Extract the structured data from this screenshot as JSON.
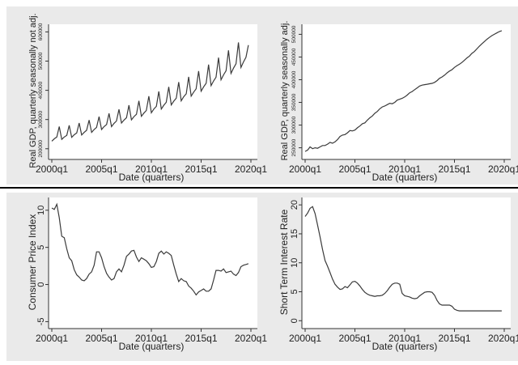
{
  "chart_data": [
    {
      "type": "line",
      "xlabel": "Date (quarters)",
      "ylabel": "Real GDP, quarterly seasonally not adj.",
      "x_ticks": [
        "2000q1",
        "2005q1",
        "2010q1",
        "2015q1",
        "2020q1"
      ],
      "y_ticks": [
        "200000",
        "300000",
        "400000",
        "500000",
        "600000"
      ],
      "xlim": [
        2000.0,
        2020.0
      ],
      "ylim": [
        180000,
        615000
      ],
      "grid": false,
      "series": [
        {
          "x": [
            2000.0,
            2000.25,
            2000.5,
            2000.75,
            2001.0,
            2001.25,
            2001.5,
            2001.75,
            2002.0,
            2002.25,
            2002.5,
            2002.75,
            2003.0,
            2003.25,
            2003.5,
            2003.75,
            2004.0,
            2004.25,
            2004.5,
            2004.75,
            2005.0,
            2005.25,
            2005.5,
            2005.75,
            2006.0,
            2006.25,
            2006.5,
            2006.75,
            2007.0,
            2007.25,
            2007.5,
            2007.75,
            2008.0,
            2008.25,
            2008.5,
            2008.75,
            2009.0,
            2009.25,
            2009.5,
            2009.75,
            2010.0,
            2010.25,
            2010.5,
            2010.75,
            2011.0,
            2011.25,
            2011.5,
            2011.75,
            2012.0,
            2012.25,
            2012.5,
            2012.75,
            2013.0,
            2013.25,
            2013.5,
            2013.75,
            2014.0,
            2014.25,
            2014.5,
            2014.75,
            2015.0,
            2015.25,
            2015.5,
            2015.75,
            2016.0,
            2016.25,
            2016.5,
            2016.75,
            2017.0,
            2017.25,
            2017.5,
            2017.75,
            2018.0,
            2018.25,
            2018.5,
            2018.75,
            2019.0,
            2019.25,
            2019.5,
            2019.75
          ],
          "y": [
            226000,
            234000,
            240000,
            276000,
            232000,
            240000,
            246000,
            280000,
            239000,
            248000,
            254000,
            288000,
            247000,
            256000,
            263000,
            298000,
            256000,
            266000,
            273000,
            310000,
            266000,
            276000,
            283000,
            321000,
            276000,
            287000,
            295000,
            335000,
            288000,
            298000,
            306000,
            349000,
            299000,
            310000,
            318000,
            364000,
            311000,
            322000,
            331000,
            380000,
            323000,
            336000,
            345000,
            396000,
            336000,
            349000,
            359000,
            412000,
            350000,
            363000,
            373000,
            428000,
            364000,
            378000,
            388000,
            446000,
            380000,
            394000,
            405000,
            466000,
            397000,
            412000,
            424000,
            488000,
            416000,
            432000,
            445000,
            512000,
            436000,
            453000,
            467000,
            537000,
            458000,
            476000,
            491000,
            564000,
            478000,
            497000,
            513000,
            555000
          ]
        }
      ]
    },
    {
      "type": "line",
      "xlabel": "Date (quarters)",
      "ylabel": "Real GDP, quarterly seasonally adj.",
      "x_ticks": [
        "2000q1",
        "2005q1",
        "2010q1",
        "2015q1",
        "2020q1"
      ],
      "y_ticks": [
        "250000",
        "300000",
        "350000",
        "400000",
        "450000",
        "500000"
      ],
      "xlim": [
        2000.0,
        2020.0
      ],
      "ylim": [
        235000,
        515000
      ],
      "grid": false,
      "series": [
        {
          "x": [
            2000.0,
            2000.25,
            2000.5,
            2000.75,
            2001.0,
            2001.25,
            2001.5,
            2001.75,
            2002.0,
            2002.25,
            2002.5,
            2002.75,
            2003.0,
            2003.25,
            2003.5,
            2003.75,
            2004.0,
            2004.25,
            2004.5,
            2004.75,
            2005.0,
            2005.25,
            2005.5,
            2005.75,
            2006.0,
            2006.25,
            2006.5,
            2006.75,
            2007.0,
            2007.25,
            2007.5,
            2007.75,
            2008.0,
            2008.25,
            2008.5,
            2008.75,
            2009.0,
            2009.25,
            2009.5,
            2009.75,
            2010.0,
            2010.25,
            2010.5,
            2010.75,
            2011.0,
            2011.25,
            2011.5,
            2011.75,
            2012.0,
            2012.25,
            2012.5,
            2012.75,
            2013.0,
            2013.25,
            2013.5,
            2013.75,
            2014.0,
            2014.25,
            2014.5,
            2014.75,
            2015.0,
            2015.25,
            2015.5,
            2015.75,
            2016.0,
            2016.25,
            2016.5,
            2016.75,
            2017.0,
            2017.25,
            2017.5,
            2017.75,
            2018.0,
            2018.25,
            2018.5,
            2018.75,
            2019.0,
            2019.25,
            2019.5,
            2019.75
          ],
          "y": [
            242000,
            245000,
            252000,
            248000,
            250000,
            249000,
            252000,
            255000,
            255000,
            258000,
            262000,
            260000,
            263000,
            268000,
            275000,
            278000,
            279000,
            283000,
            288000,
            287000,
            289000,
            294000,
            298000,
            303000,
            305000,
            311000,
            316000,
            320000,
            326000,
            330000,
            336000,
            340000,
            342000,
            345000,
            348000,
            347000,
            350000,
            355000,
            357000,
            359000,
            362000,
            366000,
            371000,
            374000,
            378000,
            382000,
            386000,
            388000,
            389000,
            390000,
            391000,
            392000,
            394000,
            398000,
            403000,
            406000,
            410000,
            415000,
            419000,
            422000,
            427000,
            431000,
            434000,
            438000,
            443000,
            448000,
            452000,
            458000,
            462000,
            468000,
            474000,
            479000,
            484000,
            489000,
            493000,
            497000,
            500000,
            503000,
            506000,
            508000
          ]
        }
      ]
    },
    {
      "type": "line",
      "xlabel": "Date (quarters)",
      "ylabel": "Consumer Price Index",
      "x_ticks": [
        "2000q1",
        "2005q1",
        "2010q1",
        "2015q1",
        "2020q1"
      ],
      "y_ticks": [
        "-5",
        "0",
        "5",
        "10"
      ],
      "xlim": [
        2000.0,
        2020.0
      ],
      "ylim": [
        -5.5,
        11.5
      ],
      "grid": false,
      "series": [
        {
          "x": [
            2000.0,
            2000.25,
            2000.5,
            2000.75,
            2001.0,
            2001.25,
            2001.5,
            2001.75,
            2002.0,
            2002.25,
            2002.5,
            2002.75,
            2003.0,
            2003.25,
            2003.5,
            2003.75,
            2004.0,
            2004.25,
            2004.5,
            2004.75,
            2005.0,
            2005.25,
            2005.5,
            2005.75,
            2006.0,
            2006.25,
            2006.5,
            2006.75,
            2007.0,
            2007.25,
            2007.5,
            2007.75,
            2008.0,
            2008.25,
            2008.5,
            2008.75,
            2009.0,
            2009.25,
            2009.5,
            2009.75,
            2010.0,
            2010.25,
            2010.5,
            2010.75,
            2011.0,
            2011.25,
            2011.5,
            2011.75,
            2012.0,
            2012.25,
            2012.5,
            2012.75,
            2013.0,
            2013.25,
            2013.5,
            2013.75,
            2014.0,
            2014.25,
            2014.5,
            2014.75,
            2015.0,
            2015.25,
            2015.5,
            2015.75,
            2016.0,
            2016.25,
            2016.5,
            2016.75,
            2017.0,
            2017.25,
            2017.5,
            2017.75,
            2018.0,
            2018.25,
            2018.5,
            2018.75,
            2019.0,
            2019.25,
            2019.5,
            2019.75
          ],
          "y": [
            10.3,
            10.1,
            10.8,
            9.0,
            6.5,
            6.3,
            4.8,
            3.6,
            3.2,
            2.0,
            1.3,
            1.0,
            0.6,
            0.5,
            0.8,
            1.4,
            1.7,
            2.6,
            4.4,
            4.4,
            3.6,
            2.4,
            1.5,
            1.0,
            0.6,
            0.8,
            1.7,
            2.1,
            1.7,
            2.6,
            3.8,
            4.1,
            4.5,
            4.6,
            3.7,
            3.1,
            3.6,
            3.4,
            3.2,
            2.8,
            2.3,
            2.4,
            3.1,
            4.2,
            4.5,
            4.1,
            4.4,
            4.2,
            3.9,
            2.6,
            1.4,
            0.4,
            0.8,
            0.5,
            0.4,
            -0.2,
            -0.5,
            -0.9,
            -1.4,
            -1.0,
            -0.8,
            -0.6,
            -0.9,
            -0.9,
            -0.6,
            0.6,
            1.9,
            1.9,
            1.8,
            2.1,
            1.6,
            1.7,
            1.8,
            1.4,
            1.2,
            1.6,
            2.4,
            2.6,
            2.7,
            2.8
          ]
        }
      ]
    },
    {
      "type": "line",
      "xlabel": "Date (quarters)",
      "ylabel": "Short Term Interest Rate",
      "x_ticks": [
        "2000q1",
        "2005q1",
        "2010q1",
        "2015q1",
        "2020q1"
      ],
      "y_ticks": [
        "0",
        "5",
        "10",
        "15",
        "20"
      ],
      "xlim": [
        2000.0,
        2020.0
      ],
      "ylim": [
        -0.8,
        21.0
      ],
      "grid": false,
      "series": [
        {
          "x": [
            2000.0,
            2000.25,
            2000.5,
            2000.75,
            2001.0,
            2001.25,
            2001.5,
            2001.75,
            2002.0,
            2002.25,
            2002.5,
            2002.75,
            2003.0,
            2003.25,
            2003.5,
            2003.75,
            2004.0,
            2004.25,
            2004.5,
            2004.75,
            2005.0,
            2005.25,
            2005.5,
            2005.75,
            2006.0,
            2006.25,
            2006.5,
            2006.75,
            2007.0,
            2007.25,
            2007.5,
            2007.75,
            2008.0,
            2008.25,
            2008.5,
            2008.75,
            2009.0,
            2009.25,
            2009.5,
            2009.75,
            2010.0,
            2010.25,
            2010.5,
            2010.75,
            2011.0,
            2011.25,
            2011.5,
            2011.75,
            2012.0,
            2012.25,
            2012.5,
            2012.75,
            2013.0,
            2013.25,
            2013.5,
            2013.75,
            2014.0,
            2014.25,
            2014.5,
            2014.75,
            2015.0,
            2015.25,
            2015.5,
            2015.75,
            2016.0,
            2016.25,
            2016.5,
            2016.75,
            2017.0,
            2017.25,
            2017.5,
            2017.75,
            2018.0,
            2018.25,
            2018.5,
            2018.75,
            2019.0,
            2019.25,
            2019.5,
            2019.75
          ],
          "y": [
            18.0,
            18.6,
            19.4,
            19.7,
            18.5,
            16.5,
            14.5,
            12.3,
            10.4,
            9.4,
            8.3,
            7.2,
            6.3,
            5.8,
            5.4,
            5.5,
            5.9,
            5.7,
            6.2,
            6.7,
            6.8,
            6.5,
            6.0,
            5.4,
            4.9,
            4.6,
            4.4,
            4.3,
            4.2,
            4.3,
            4.3,
            4.4,
            4.7,
            5.2,
            5.8,
            6.3,
            6.5,
            6.5,
            6.3,
            4.7,
            4.3,
            4.2,
            4.1,
            3.9,
            3.8,
            3.9,
            4.3,
            4.6,
            4.9,
            5.0,
            5.0,
            4.9,
            4.4,
            3.5,
            2.9,
            2.7,
            2.7,
            2.7,
            2.7,
            2.5,
            2.0,
            1.8,
            1.7,
            1.7,
            1.7,
            1.7,
            1.7,
            1.7,
            1.7,
            1.7,
            1.7,
            1.7,
            1.7,
            1.7,
            1.7,
            1.7,
            1.7,
            1.7,
            1.7,
            1.7
          ]
        }
      ]
    }
  ]
}
